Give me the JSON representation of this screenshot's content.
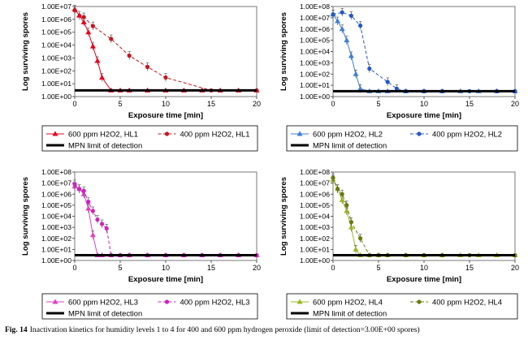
{
  "caption": {
    "label": "Fig. 14",
    "text": "Inactivation kinetics for humidity levels 1 to 4 for 400 and 600 ppm hydrogen peroxide (limit of detection=3.00E+00 spores)"
  },
  "chart_data": [
    {
      "type": "line",
      "xlabel": "Exposure time  [min]",
      "ylabel": "Log surviving spores",
      "xlim": [
        0,
        20
      ],
      "xticks": [
        "0",
        "5",
        "10",
        "15",
        "20"
      ],
      "ylim": [
        1,
        10000000
      ],
      "yscale": "log",
      "yticks": [
        "1.00E+00",
        "1.00E+01",
        "1.00E+02",
        "1.00E+03",
        "1.00E+04",
        "1.00E+05",
        "1.00E+06",
        "1.00E+07"
      ],
      "legend_position": "bottom",
      "detection_limit": 3,
      "series": [
        {
          "name": "600 ppm H2O2, HL1",
          "color": "#e8001c",
          "marker": "triangle",
          "dashed": false,
          "x": [
            0,
            0.5,
            1,
            1.5,
            2,
            2.5,
            3,
            4,
            5,
            6,
            8,
            10,
            12,
            14,
            16,
            18,
            20
          ],
          "y": [
            6000000,
            2000000,
            600000,
            100000,
            8000,
            600,
            30,
            3,
            3,
            3,
            3,
            3,
            3,
            3,
            3,
            3,
            3
          ]
        },
        {
          "name": "400 ppm H2O2, HL1",
          "color": "#c4161c",
          "marker": "circle",
          "dashed": true,
          "x": [
            0,
            1,
            2,
            4,
            6,
            8,
            10,
            15,
            20
          ],
          "y": [
            5000000,
            1500000,
            300000,
            30000,
            1500,
            200,
            30,
            3,
            3
          ]
        },
        {
          "name": "MPN limit of detection",
          "color": "#000000",
          "marker": "none",
          "dashed": false,
          "thick": true,
          "x": [
            0,
            20
          ],
          "y": [
            3,
            3
          ]
        }
      ]
    },
    {
      "type": "line",
      "xlabel": "Exposure time  [min]",
      "ylabel": "Log surviving spores",
      "xlim": [
        0,
        20
      ],
      "xticks": [
        "0",
        "5",
        "10",
        "15",
        "20"
      ],
      "ylim": [
        1,
        100000000
      ],
      "yscale": "log",
      "yticks": [
        "1.00E+00",
        "1.00E+01",
        "1.00E+02",
        "1.00E+03",
        "1.00E+04",
        "1.00E+05",
        "1.00E+06",
        "1.00E+07",
        "1.00E+08"
      ],
      "legend_position": "bottom",
      "detection_limit": 3,
      "series": [
        {
          "name": "600 ppm H2O2, HL2",
          "color": "#3c7fd6",
          "marker": "triangle",
          "dashed": false,
          "x": [
            0,
            0.5,
            1,
            1.5,
            2,
            2.5,
            3,
            4,
            5,
            6,
            8,
            10,
            12,
            14,
            16,
            18,
            20
          ],
          "y": [
            20000000,
            5000000,
            1000000,
            100000,
            4000,
            100,
            5,
            3,
            3,
            3,
            3,
            3,
            3,
            3,
            3,
            3,
            3
          ]
        },
        {
          "name": "400 ppm H2O2, HL2",
          "color": "#2457c8",
          "marker": "circle",
          "dashed": true,
          "x": [
            0,
            1,
            2,
            3,
            4,
            6,
            7,
            8,
            10,
            12,
            15,
            18,
            20
          ],
          "y": [
            20000000,
            30000000,
            15000000,
            2000000,
            300,
            20,
            5,
            3,
            3,
            3,
            3,
            3,
            3
          ]
        },
        {
          "name": "MPN limit of detection",
          "color": "#000000",
          "marker": "none",
          "dashed": false,
          "thick": true,
          "x": [
            0,
            20
          ],
          "y": [
            3,
            3
          ]
        }
      ]
    },
    {
      "type": "line",
      "xlabel": "Exposure time [min]",
      "ylabel": "Log surviving spores",
      "xlim": [
        0,
        20
      ],
      "xticks": [
        "0",
        "5",
        "10",
        "15",
        "20"
      ],
      "ylim": [
        1,
        100000000
      ],
      "yscale": "log",
      "yticks": [
        "1.00E+00",
        "1.00E+01",
        "1.00E+02",
        "1.00E+03",
        "1.00E+04",
        "1.00E+05",
        "1.00E+06",
        "1.00E+07",
        "1.00E+08"
      ],
      "legend_position": "bottom",
      "detection_limit": 3,
      "series": [
        {
          "name": "600 ppm H2O2, HL3",
          "color": "#e040c8",
          "marker": "triangle",
          "dashed": false,
          "x": [
            0,
            0.5,
            1,
            1.5,
            2,
            2.5,
            3,
            4,
            5,
            6,
            8,
            10,
            12,
            14,
            16,
            18,
            20
          ],
          "y": [
            5000000,
            3000000,
            1000000,
            50000,
            200,
            3,
            3,
            3,
            3,
            3,
            3,
            3,
            3,
            3,
            3,
            3,
            3
          ]
        },
        {
          "name": "400 ppm H2O2, HL3",
          "color": "#d020c0",
          "marker": "circle",
          "dashed": true,
          "x": [
            0,
            0.5,
            1,
            1.5,
            2,
            2.5,
            3,
            3.5,
            4,
            5,
            6,
            8,
            10,
            12,
            14,
            16,
            18,
            20
          ],
          "y": [
            8000000,
            3000000,
            2000000,
            200000,
            30000,
            5000,
            2000,
            800,
            3,
            3,
            3,
            3,
            3,
            3,
            3,
            3,
            3,
            3
          ]
        },
        {
          "name": "MPN limit of detection",
          "color": "#000000",
          "marker": "none",
          "dashed": false,
          "thick": true,
          "x": [
            0,
            20
          ],
          "y": [
            3,
            3
          ]
        }
      ]
    },
    {
      "type": "line",
      "xlabel": "Exposure time [min]",
      "ylabel": "Log surviving spores",
      "xlim": [
        0,
        20
      ],
      "xticks": [
        "0",
        "5",
        "10",
        "15",
        "20"
      ],
      "ylim": [
        1,
        100000000
      ],
      "yscale": "log",
      "yticks": [
        "1.00E+00",
        "1.00E+01",
        "1.00E+02",
        "1.00E+03",
        "1.00E+04",
        "1.00E+05",
        "1.00E+06",
        "1.00E+07",
        "1.00E+08"
      ],
      "legend_position": "bottom",
      "detection_limit": 3,
      "series": [
        {
          "name": "600 ppm H2O2, HL4",
          "color": "#9ab820",
          "marker": "triangle",
          "dashed": false,
          "x": [
            0,
            0.5,
            1,
            1.5,
            2,
            2.5,
            3,
            4,
            5,
            6,
            8,
            10,
            12,
            14,
            16,
            18,
            20
          ],
          "y": [
            20000000,
            3000000,
            300000,
            30000,
            1000,
            10,
            3,
            3,
            3,
            3,
            3,
            3,
            3,
            3,
            3,
            3,
            3
          ]
        },
        {
          "name": "400 ppm H2O2, HL4",
          "color": "#6a7a10",
          "marker": "circle",
          "dashed": true,
          "x": [
            0,
            0.5,
            1,
            1.5,
            2,
            3,
            4,
            5,
            6,
            8,
            10,
            12,
            15,
            20
          ],
          "y": [
            30000000,
            3000000,
            1000000,
            100000,
            3000,
            100,
            3,
            3,
            3,
            3,
            3,
            3,
            3,
            3
          ]
        },
        {
          "name": "MPN limit of detection",
          "color": "#000000",
          "marker": "none",
          "dashed": false,
          "thick": true,
          "x": [
            0,
            20
          ],
          "y": [
            3,
            3
          ]
        }
      ]
    }
  ]
}
